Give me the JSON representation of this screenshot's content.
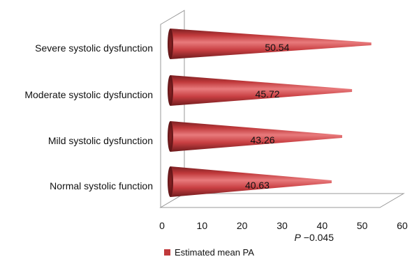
{
  "chart_data": {
    "type": "bar",
    "orientation": "horizontal",
    "style": "3d-cone",
    "categories": [
      "Severe systolic dysfunction",
      "Moderate systolic dysfunction",
      "Mild systolic dysfunction",
      "Normal systolic function"
    ],
    "series": [
      {
        "name": "Estimated mean PA",
        "values": [
          50.54,
          45.72,
          43.26,
          40.63
        ],
        "color": "#c0393b"
      }
    ],
    "xlim": [
      0,
      60
    ],
    "xticks": [
      0,
      10,
      20,
      30,
      40,
      50,
      60
    ],
    "annotation": {
      "label_italic": "P",
      "value": " −0.045"
    },
    "legend_placement": "bottom",
    "grid": false
  }
}
